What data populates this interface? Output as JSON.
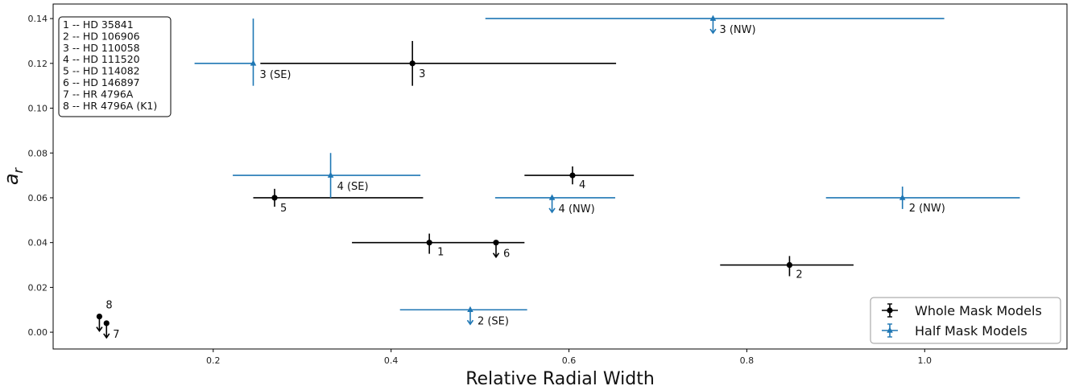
{
  "chart_data": {
    "type": "scatter",
    "xlabel": "Relative Radial Width",
    "ylabel": "a",
    "ylabel_subscript": "r",
    "xlim": [
      0.02,
      1.16
    ],
    "ylim": [
      -0.0075,
      0.1465
    ],
    "x_ticks": [
      0.2,
      0.4,
      0.6,
      0.8,
      1.0
    ],
    "x_tick_labels": [
      "0.2",
      "0.4",
      "0.6",
      "0.8",
      "1.0"
    ],
    "y_ticks": [
      0.0,
      0.02,
      0.04,
      0.06,
      0.08,
      0.1,
      0.12,
      0.14
    ],
    "y_tick_labels": [
      "0.00",
      "0.02",
      "0.04",
      "0.06",
      "0.08",
      "0.10",
      "0.12",
      "0.14"
    ],
    "grid": false,
    "legend_position": "bottom-right",
    "key_position": "top-left",
    "key_entries": [
      "1 -- HD 35841",
      "2 -- HD 106906",
      "3 -- HD 110058",
      "4 -- HD 111520",
      "5 -- HD 114082",
      "6 -- HD 146897",
      "7 -- HR 4796A",
      "8 -- HR 4796A (K1)"
    ],
    "series": [
      {
        "name": "Whole Mask Models",
        "color": "#000000",
        "marker": "circle",
        "points": [
          {
            "x": 0.443,
            "y": 0.04,
            "xerr_low": 0.087,
            "xerr_high": 0.107,
            "yerr_low": 0.005,
            "yerr_high": 0.004,
            "upper_limit": false,
            "label": "1"
          },
          {
            "x": 0.848,
            "y": 0.03,
            "xerr_low": 0.078,
            "xerr_high": 0.072,
            "yerr_low": 0.005,
            "yerr_high": 0.004,
            "upper_limit": false,
            "label": "2"
          },
          {
            "x": 0.424,
            "y": 0.12,
            "xerr_low": 0.171,
            "xerr_high": 0.229,
            "yerr_low": 0.01,
            "yerr_high": 0.01,
            "upper_limit": false,
            "label": "3"
          },
          {
            "x": 0.604,
            "y": 0.07,
            "xerr_low": 0.054,
            "xerr_high": 0.069,
            "yerr_low": 0.004,
            "yerr_high": 0.004,
            "upper_limit": false,
            "label": "4"
          },
          {
            "x": 0.269,
            "y": 0.06,
            "xerr_low": 0.024,
            "xerr_high": 0.167,
            "yerr_low": 0.004,
            "yerr_high": 0.004,
            "upper_limit": false,
            "label": "5"
          },
          {
            "x": 0.518,
            "y": 0.04,
            "xerr_low": 0.0,
            "xerr_high": 0.0,
            "yerr_low": 0.0,
            "yerr_high": 0.0,
            "upper_limit": true,
            "label": "6"
          },
          {
            "x": 0.08,
            "y": 0.004,
            "xerr_low": 0.0,
            "xerr_high": 0.0,
            "yerr_low": 0.0,
            "yerr_high": 0.0,
            "upper_limit": true,
            "label": "7"
          },
          {
            "x": 0.072,
            "y": 0.007,
            "xerr_low": 0.0,
            "xerr_high": 0.0,
            "yerr_low": 0.0,
            "yerr_high": 0.0,
            "upper_limit": true,
            "label": "8"
          }
        ]
      },
      {
        "name": "Half Mask Models",
        "color": "#1f77b4",
        "marker": "triangle",
        "points": [
          {
            "x": 0.489,
            "y": 0.01,
            "xerr_low": 0.079,
            "xerr_high": 0.064,
            "yerr_low": 0.0,
            "yerr_high": 0.0,
            "upper_limit": true,
            "label": "2 (SE)"
          },
          {
            "x": 0.975,
            "y": 0.06,
            "xerr_low": 0.086,
            "xerr_high": 0.132,
            "yerr_low": 0.005,
            "yerr_high": 0.005,
            "upper_limit": false,
            "label": "2 (NW)"
          },
          {
            "x": 0.245,
            "y": 0.12,
            "xerr_low": 0.066,
            "xerr_high": 0.0,
            "yerr_low": 0.01,
            "yerr_high": 0.02,
            "upper_limit": false,
            "label": "3 (SE)"
          },
          {
            "x": 0.762,
            "y": 0.14,
            "xerr_low": 0.256,
            "xerr_high": 0.26,
            "yerr_low": 0.0,
            "yerr_high": 0.0,
            "upper_limit": true,
            "label": "3 (NW)"
          },
          {
            "x": 0.332,
            "y": 0.07,
            "xerr_low": 0.11,
            "xerr_high": 0.101,
            "yerr_low": 0.01,
            "yerr_high": 0.01,
            "upper_limit": false,
            "label": "4 (SE)"
          },
          {
            "x": 0.581,
            "y": 0.06,
            "xerr_low": 0.064,
            "xerr_high": 0.071,
            "yerr_low": 0.0,
            "yerr_high": 0.0,
            "upper_limit": true,
            "label": "4 (NW)"
          }
        ]
      }
    ]
  }
}
